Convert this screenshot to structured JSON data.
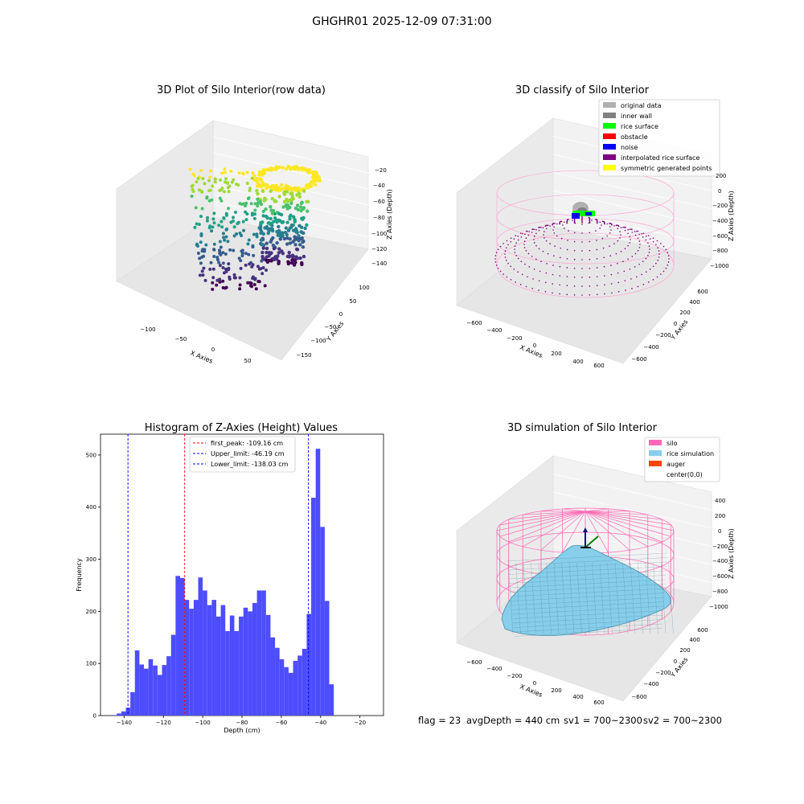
{
  "suptitle": "GHGHR01 2025-12-09 07:31:00",
  "colors": {
    "hist_bar": "#4d4dff",
    "peak_line": "#ff0000",
    "limit_line": "#0000ff",
    "pane": "#f2f2f2",
    "pane_grid": "#ffffff",
    "silo_pink": "#ff69b4",
    "rice_blue": "#87ceeb",
    "auger": "#ff4500"
  },
  "chart_data": [
    {
      "type": "scatter",
      "projection": "3d",
      "title": "3D Plot of Silo Interior(row data)",
      "xlabel": "X Axies",
      "ylabel": "Y Axies",
      "zlabel": "Z Axies (Depth)",
      "xticks": [
        "−100",
        "−50",
        "0",
        "50"
      ],
      "yticks": [
        "100",
        "50",
        "0",
        "−50",
        "−100",
        "−150"
      ],
      "zticks": [
        "−20",
        "−40",
        "−60",
        "−80",
        "−100",
        "−120",
        "−140"
      ],
      "colormap": "viridis",
      "zlim": [
        -145,
        -15
      ]
    },
    {
      "type": "scatter",
      "projection": "3d",
      "title": "3D classify of Silo Interior",
      "xlabel": "X Axies",
      "ylabel": "Y Axies",
      "zlabel": "Z Axies (Depth)",
      "xticks": [
        "−600",
        "−400",
        "−200",
        "0",
        "200",
        "400",
        "600"
      ],
      "yticks": [
        "600",
        "400",
        "200",
        "0",
        "−200",
        "−400",
        "−600"
      ],
      "zticks": [
        "200",
        "0",
        "−200",
        "−400",
        "−600",
        "−800",
        "−1000"
      ],
      "legend": [
        {
          "label": "original data",
          "color": "#b0b0b0"
        },
        {
          "label": "inner wall",
          "color": "#808080"
        },
        {
          "label": "rice surface",
          "color": "#00ff00"
        },
        {
          "label": "obstacle",
          "color": "#ff0000"
        },
        {
          "label": "noise",
          "color": "#0000ff"
        },
        {
          "label": "interpolated rice surface",
          "color": "#800080"
        },
        {
          "label": "symmetric generated points",
          "color": "#ffff00"
        }
      ],
      "legend_position": "top-right"
    },
    {
      "type": "bar",
      "title": "Histogram of Z-Axies (Height) Values",
      "xlabel": "Depth (cm)",
      "ylabel": "Frequency",
      "xlim": [
        -152,
        -8
      ],
      "ylim": [
        0,
        540
      ],
      "xticks": [
        -140,
        -120,
        -100,
        -80,
        -60,
        -40,
        -20
      ],
      "yticks": [
        0,
        100,
        200,
        300,
        400,
        500
      ],
      "bin_start": -146,
      "bin_width": 2.3,
      "counts": [
        1,
        4,
        8,
        15,
        45,
        125,
        98,
        90,
        108,
        96,
        78,
        97,
        114,
        155,
        268,
        264,
        222,
        205,
        222,
        265,
        240,
        212,
        222,
        190,
        212,
        162,
        192,
        162,
        190,
        207,
        200,
        216,
        240,
        240,
        193,
        150,
        130,
        108,
        93,
        82,
        105,
        115,
        128,
        195,
        418,
        512,
        362,
        220,
        60
      ],
      "vlines": [
        {
          "label": "first_peak: -109.16 cm",
          "x": -109.16,
          "color": "#ff0000"
        },
        {
          "label": "Upper_limit: -46.19 cm",
          "x": -46.19,
          "color": "#0000ff"
        },
        {
          "label": "Lower_limit: -138.03 cm",
          "x": -138.03,
          "color": "#0000ff"
        }
      ],
      "legend_position": "top-center"
    },
    {
      "type": "surface",
      "projection": "3d",
      "title": "3D simulation of Silo Interior",
      "xlabel": "X Axies",
      "ylabel": "Y Axies",
      "zlabel": "Z Axies (Depth)",
      "xticks": [
        "−600",
        "−400",
        "−200",
        "0",
        "200",
        "400",
        "600"
      ],
      "yticks": [
        "600",
        "400",
        "200",
        "0",
        "−200",
        "−400",
        "−600"
      ],
      "zticks": [
        "400",
        "200",
        "0",
        "−200",
        "−400",
        "−600",
        "−800",
        "−1000"
      ],
      "legend": [
        {
          "label": "silo",
          "color": "#ff69b4"
        },
        {
          "label": "rice simulation",
          "color": "#87ceeb"
        },
        {
          "label": "auger",
          "color": "#ff4500"
        },
        {
          "label": "center(0,0)",
          "color": ""
        }
      ],
      "legend_position": "top-right"
    }
  ],
  "footer": {
    "flag": "flag = 23",
    "avg_depth": "avgDepth = 440 cm",
    "sv1": "sv1 = 700~2300",
    "sv2": "sv2 = 700~2300"
  }
}
